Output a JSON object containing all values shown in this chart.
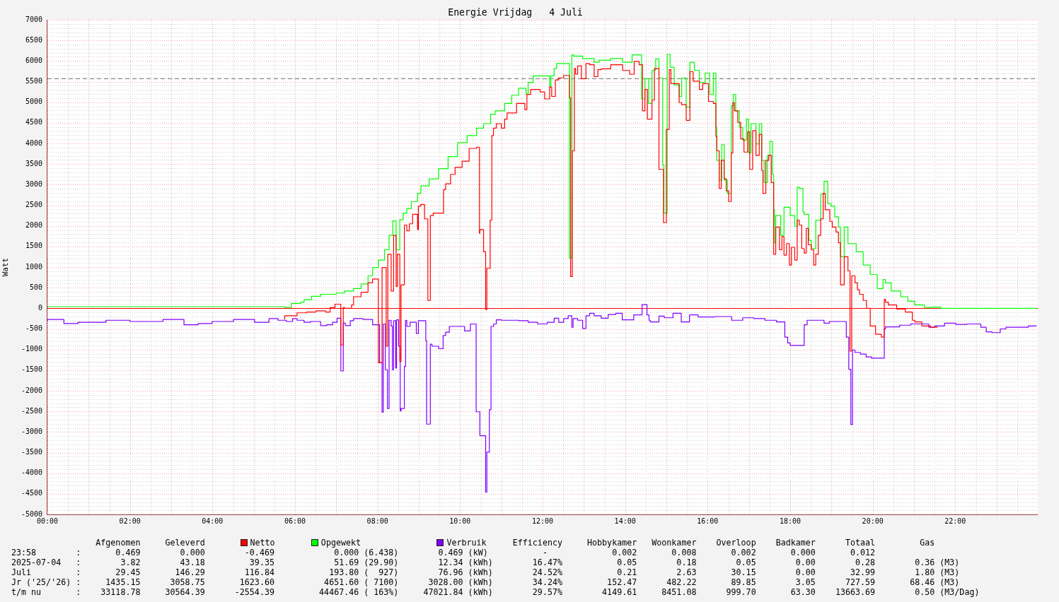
{
  "chart_data": {
    "type": "step",
    "title": "Energie Vrijdag   4 Juli",
    "ylabel": "Watt",
    "xlim": [
      0,
      24
    ],
    "ylim": [
      -5000,
      7000
    ],
    "xticks": [
      {
        "value": 0,
        "label": "00:00"
      },
      {
        "value": 1,
        "label": null
      },
      {
        "value": 2,
        "label": "02:00"
      },
      {
        "value": 3,
        "label": null
      },
      {
        "value": 4,
        "label": "04:00"
      },
      {
        "value": 5,
        "label": null
      },
      {
        "value": 6,
        "label": "06:00"
      },
      {
        "value": 7,
        "label": null
      },
      {
        "value": 8,
        "label": "08:00"
      },
      {
        "value": 9,
        "label": null
      },
      {
        "value": 10,
        "label": "10:00"
      },
      {
        "value": 11,
        "label": null
      },
      {
        "value": 12,
        "label": "12:00"
      },
      {
        "value": 13,
        "label": null
      },
      {
        "value": 14,
        "label": "14:00"
      },
      {
        "value": 15,
        "label": null
      },
      {
        "value": 16,
        "label": "16:00"
      },
      {
        "value": 17,
        "label": null
      },
      {
        "value": 18,
        "label": "18:00"
      },
      {
        "value": 19,
        "label": null
      },
      {
        "value": 20,
        "label": "20:00"
      },
      {
        "value": 21,
        "label": null
      },
      {
        "value": 22,
        "label": "22:00"
      },
      {
        "value": 23,
        "label": null
      }
    ],
    "yticks": [
      -5000,
      -4500,
      -4000,
      -3500,
      -3000,
      -2500,
      -2000,
      -1500,
      -1000,
      -500,
      0,
      500,
      1000,
      1500,
      2000,
      2500,
      3000,
      3500,
      4000,
      4500,
      5000,
      5500,
      6000,
      6500,
      7000
    ],
    "grid": true,
    "legend": "bottom",
    "ref_lines": [
      {
        "axis": "y",
        "value": 0,
        "color": "#ff0000"
      },
      {
        "axis": "y",
        "value": 5580,
        "color": "#808080",
        "line_style": "dashed"
      }
    ],
    "series": [
      {
        "name": "Netto",
        "color": "#ff0000",
        "x": [
          5.75,
          6.05,
          6.28,
          6.51,
          6.74,
          6.85,
          6.97,
          7.11,
          7.17,
          7.2,
          7.37,
          7.42,
          7.6,
          7.77,
          7.88,
          8.02,
          8.11,
          8.21,
          8.25,
          8.33,
          8.39,
          8.45,
          8.48,
          8.54,
          8.57,
          8.65,
          8.71,
          8.77,
          8.85,
          8.97,
          8.99,
          9.05,
          9.14,
          9.22,
          9.28,
          9.35,
          9.6,
          9.65,
          9.77,
          9.88,
          10.05,
          10.22,
          10.4,
          10.47,
          10.48,
          10.57,
          10.62,
          10.65,
          10.73,
          10.77,
          10.81,
          10.88,
          11.0,
          11.08,
          11.14,
          11.37,
          11.57,
          11.62,
          11.71,
          11.94,
          12.05,
          12.17,
          12.22,
          12.31,
          12.39,
          12.51,
          12.65,
          12.68,
          12.72,
          12.77,
          12.8,
          12.85,
          12.94,
          13.05,
          13.14,
          13.25,
          13.34,
          13.42,
          13.65,
          13.94,
          14.11,
          14.22,
          14.34,
          14.42,
          14.48,
          14.54,
          14.65,
          14.71,
          14.82,
          14.93,
          15.0,
          15.07,
          15.11,
          15.31,
          15.37,
          15.48,
          15.57,
          15.65,
          15.8,
          15.88,
          16.02,
          16.14,
          16.2,
          16.22,
          16.28,
          16.33,
          16.4,
          16.45,
          16.51,
          16.57,
          16.61,
          16.65,
          16.73,
          16.8,
          16.88,
          16.97,
          17.02,
          17.09,
          17.17,
          17.25,
          17.31,
          17.34,
          17.41,
          17.48,
          17.54,
          17.6,
          17.65,
          17.74,
          17.8,
          17.85,
          17.91,
          17.98,
          18.03,
          18.11,
          18.17,
          18.22,
          18.28,
          18.34,
          18.39,
          18.44,
          18.51,
          18.57,
          18.62,
          18.68,
          18.74,
          18.8,
          18.85,
          18.96,
          19.02,
          19.11,
          19.17,
          19.22,
          19.31,
          19.4,
          19.45,
          19.49,
          19.57,
          19.63,
          19.68,
          19.77,
          19.85,
          19.94,
          20.07,
          20.21,
          20.28,
          20.31,
          20.38,
          20.58,
          20.79,
          20.96,
          21.02,
          21.19,
          21.4,
          21.57
        ],
        "values": [
          -270,
          -180,
          -110,
          -90,
          -60,
          -90,
          20,
          100,
          -890,
          20,
          0,
          80,
          280,
          390,
          620,
          710,
          -1320,
          990,
          -920,
          1310,
          420,
          1770,
          530,
          1310,
          -1290,
          570,
          2020,
          1880,
          2050,
          2280,
          1910,
          2480,
          2520,
          2170,
          190,
          2250,
          2310,
          2880,
          3020,
          3250,
          3420,
          3570,
          3880,
          3910,
          1820,
          1910,
          1370,
          -30,
          970,
          2140,
          4190,
          4370,
          4480,
          4370,
          4590,
          4740,
          4970,
          4820,
          5190,
          5310,
          5250,
          5080,
          5370,
          5140,
          5540,
          5590,
          5650,
          5110,
          770,
          3820,
          5820,
          5680,
          5880,
          5570,
          5940,
          5910,
          5620,
          5790,
          5810,
          5910,
          5770,
          5680,
          5990,
          5910,
          4790,
          5310,
          4590,
          5050,
          5820,
          3370,
          2080,
          4340,
          5790,
          5450,
          4990,
          4940,
          4560,
          5740,
          5510,
          5310,
          5450,
          5020,
          4970,
          4170,
          3820,
          2910,
          3590,
          3140,
          2850,
          2590,
          3770,
          4990,
          4790,
          4510,
          4110,
          3790,
          4280,
          3370,
          4310,
          3710,
          4220,
          3340,
          2790,
          3590,
          3710,
          3050,
          1310,
          1970,
          1420,
          1740,
          1290,
          1570,
          1050,
          1480,
          1170,
          2140,
          2020,
          1450,
          1340,
          1940,
          1540,
          1420,
          1050,
          1310,
          1770,
          2170,
          2790,
          2390,
          2110,
          1970,
          1850,
          1590,
          570,
          1250,
          910,
          -1040,
          790,
          620,
          450,
          340,
          190,
          0,
          -430,
          -630,
          -700,
          220,
          150,
          80,
          -20,
          -90,
          -290,
          -330,
          -430,
          -460
        ]
      },
      {
        "name": "Opgewekt",
        "color": "#00ff00",
        "x": [
          0,
          5.75,
          5.91,
          6.14,
          6.22,
          6.4,
          6.62,
          7.0,
          7.2,
          7.42,
          7.6,
          7.77,
          7.88,
          8.02,
          8.17,
          8.28,
          8.37,
          8.45,
          8.54,
          8.62,
          8.71,
          8.82,
          8.97,
          9.05,
          9.25,
          9.48,
          9.71,
          9.94,
          10.17,
          10.4,
          10.57,
          10.74,
          10.85,
          11.08,
          11.25,
          11.42,
          11.6,
          11.65,
          11.77,
          12.0,
          12.17,
          12.2,
          12.28,
          12.34,
          12.51,
          12.65,
          12.71,
          12.75,
          12.97,
          13.25,
          13.37,
          13.65,
          13.94,
          14.17,
          14.4,
          14.48,
          14.57,
          14.65,
          14.74,
          14.82,
          14.91,
          14.94,
          15.02,
          15.09,
          15.19,
          15.31,
          15.37,
          15.48,
          15.57,
          15.68,
          15.8,
          15.94,
          16.05,
          16.14,
          16.2,
          16.22,
          16.28,
          16.34,
          16.4,
          16.48,
          16.57,
          16.62,
          16.68,
          16.77,
          16.85,
          16.94,
          16.99,
          17.05,
          17.17,
          17.25,
          17.31,
          17.37,
          17.45,
          17.51,
          17.57,
          17.6,
          17.62,
          17.65,
          17.77,
          17.85,
          18.0,
          18.11,
          18.17,
          18.22,
          18.31,
          18.34,
          18.45,
          18.51,
          18.62,
          18.74,
          18.82,
          18.91,
          18.99,
          19.08,
          19.17,
          19.22,
          19.31,
          19.4,
          19.6,
          19.77,
          19.94,
          20.11,
          20.25,
          20.31,
          20.45,
          20.68,
          20.85,
          21.02,
          21.25,
          21.4,
          21.65,
          21.68,
          23.97
        ],
        "values": [
          0,
          40,
          20,
          120,
          150,
          210,
          290,
          340,
          370,
          420,
          480,
          590,
          790,
          990,
          1170,
          1420,
          1770,
          2120,
          1420,
          2150,
          2310,
          2420,
          2590,
          2790,
          2970,
          3140,
          3390,
          3680,
          4020,
          4190,
          4370,
          4480,
          4710,
          4790,
          4970,
          5170,
          5340,
          5200,
          5480,
          5640,
          5640,
          5390,
          5640,
          5820,
          5940,
          5940,
          1220,
          6150,
          6120,
          6060,
          5970,
          6020,
          6060,
          5970,
          6150,
          5080,
          5570,
          4970,
          5770,
          6050,
          5590,
          3480,
          2310,
          6160,
          5850,
          5420,
          5140,
          5590,
          4880,
          5970,
          5770,
          5480,
          5710,
          5190,
          5710,
          4390,
          3590,
          3110,
          3970,
          3110,
          2790,
          4910,
          5190,
          4790,
          4390,
          4080,
          4590,
          3770,
          4480,
          3990,
          4480,
          3590,
          3050,
          3710,
          4050,
          3250,
          2390,
          1590,
          2250,
          1770,
          2450,
          2250,
          1990,
          2940,
          2910,
          2340,
          2280,
          1650,
          1450,
          2140,
          2770,
          3080,
          2540,
          2480,
          2220,
          1970,
          1250,
          1970,
          1570,
          1370,
          1050,
          820,
          480,
          700,
          620,
          420,
          280,
          170,
          80,
          20,
          30,
          0,
          0
        ]
      },
      {
        "name": "Verbruik",
        "color": "#8000ff",
        "x": [
          0,
          0.4,
          0.74,
          1.42,
          2.0,
          2.8,
          3.31,
          3.65,
          3.99,
          4.51,
          5.02,
          5.37,
          5.59,
          5.79,
          5.94,
          6.05,
          6.22,
          6.37,
          6.62,
          6.77,
          6.91,
          7.02,
          7.11,
          7.17,
          7.22,
          7.34,
          7.42,
          7.65,
          7.88,
          8.05,
          8.11,
          8.14,
          8.19,
          8.24,
          8.28,
          8.33,
          8.36,
          8.39,
          8.44,
          8.46,
          8.51,
          8.55,
          8.57,
          8.65,
          8.68,
          8.71,
          8.79,
          8.94,
          8.99,
          9.05,
          9.17,
          9.19,
          9.28,
          9.32,
          9.48,
          9.59,
          9.65,
          9.74,
          9.88,
          10.11,
          10.25,
          10.39,
          10.48,
          10.62,
          10.65,
          10.71,
          10.75,
          10.81,
          10.88,
          11.0,
          11.42,
          11.65,
          11.88,
          12.11,
          12.28,
          12.39,
          12.51,
          12.62,
          12.71,
          12.74,
          12.85,
          12.97,
          13.05,
          13.14,
          13.25,
          13.42,
          13.59,
          13.77,
          13.93,
          14.21,
          14.41,
          14.53,
          14.58,
          14.61,
          14.82,
          14.95,
          15.16,
          15.36,
          15.56,
          15.77,
          16.17,
          16.58,
          16.85,
          17.12,
          17.39,
          17.67,
          17.87,
          17.94,
          18.0,
          18.34,
          18.41,
          18.82,
          18.95,
          19.36,
          19.42,
          19.47,
          19.51,
          19.57,
          19.7,
          19.84,
          19.97,
          20.28,
          20.31,
          20.65,
          20.92,
          21.36,
          21.5,
          21.74,
          22.01,
          22.28,
          22.62,
          22.75,
          22.89,
          23.09,
          23.23,
          23.5,
          23.77,
          23.97
        ],
        "values": [
          -320,
          -270,
          -370,
          -340,
          -290,
          -320,
          -270,
          -400,
          -370,
          -320,
          -270,
          -340,
          -250,
          -290,
          -320,
          -250,
          -290,
          -340,
          -320,
          -420,
          -400,
          -340,
          -240,
          -1520,
          -360,
          -420,
          -300,
          -250,
          -270,
          -400,
          -1320,
          -2520,
          -380,
          -1490,
          -2430,
          -290,
          -430,
          -1490,
          -300,
          -1450,
          -280,
          -920,
          -2490,
          -2430,
          -1410,
          -290,
          -440,
          -340,
          -610,
          -300,
          -300,
          -780,
          -2810,
          -870,
          -920,
          -980,
          -660,
          -580,
          -440,
          -440,
          -550,
          -380,
          -2510,
          -3090,
          -4460,
          -3490,
          -2460,
          -440,
          -380,
          -280,
          -290,
          -300,
          -340,
          -380,
          -340,
          -240,
          -340,
          -250,
          -180,
          -460,
          -250,
          -290,
          -490,
          -180,
          -120,
          -180,
          -240,
          -150,
          -120,
          -280,
          -160,
          90,
          -160,
          -290,
          -330,
          -190,
          -230,
          -120,
          -330,
          -160,
          -210,
          -200,
          -290,
          -230,
          -250,
          -290,
          -330,
          -700,
          -840,
          -900,
          -400,
          -290,
          -360,
          -320,
          -700,
          -1480,
          -2820,
          -1010,
          -1070,
          -1110,
          -1180,
          -1210,
          -500,
          -450,
          -410,
          -380,
          -460,
          -430,
          -360,
          -390,
          -380,
          -460,
          -570,
          -590,
          -500,
          -460,
          -460,
          -430
        ]
      }
    ],
    "annotations": [
      "Afgenomen     Geleverd",
      "Efficiency     Hobbykamer   Woonkamer    Overloop    Badkamer      Totaal         Gas",
      "23:58        :       0.469        0.000        -0.469            0.000 (6.438)        0.469 (kW)           -             0.002       0.008       0.002       0.000       0.012",
      "2025-07-04   :        3.82        43.18         39.35            51.69 (29.90)        12.34 (kWh)        16.47%           0.05        0.18        0.05        0.00        0.28        0.36 (M3)",
      "Juli         :       29.45       146.29        116.84           193.80 (  927)        76.96 (kWh)        24.52%           0.21        2.63       30.15        0.00       32.99        1.80 (M3)",
      "Jr ('25/'26) :     1435.15      3058.75       1623.60          4651.60 ( 7100)      3028.00 (kWh)        34.24%         152.47      482.22       89.85        3.05      727.59       68.46 (M3)",
      "t/m nu       :    33118.78     30564.39      -2554.39         44467.46 ( 163%)     47021.84 (kWh)        29.57%        4149.61     8451.08      999.70       63.30    13663.69        0.50 (M3/Dag)"
    ]
  }
}
